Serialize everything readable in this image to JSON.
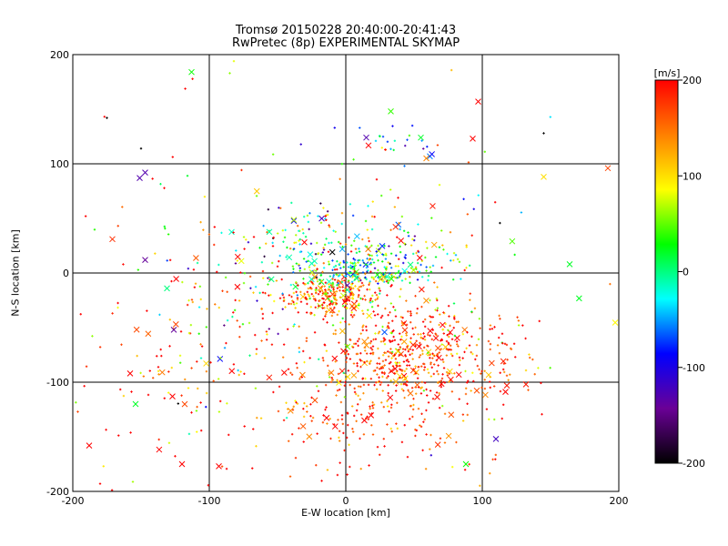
{
  "chart_data": {
    "type": "scatter",
    "title": "Tromsø 20150228 20:40:00-20:41:43",
    "subtitle": "RwPretec (8p) EXPERIMENTAL SKYMAP",
    "xlabel": "E-W location [km]",
    "ylabel": "N-S location [km]",
    "xlim": [
      -200,
      200
    ],
    "ylim": [
      -200,
      200
    ],
    "xticks": [
      "-200",
      "-100",
      "0",
      "100",
      "200"
    ],
    "yticks": [
      "-200",
      "-100",
      "0",
      "100",
      "200"
    ],
    "grid": true,
    "colorbar": {
      "label": "[m/s]",
      "range": [
        -200,
        200
      ],
      "ticks": [
        "-200",
        "-100",
        "0",
        "100",
        "200"
      ],
      "stops": [
        "#000000",
        "#6a0096",
        "#0000ff",
        "#00ffff",
        "#00ff00",
        "#ffff00",
        "#ff8000",
        "#ff0000"
      ]
    },
    "markers": {
      "large": "x",
      "small": "+"
    },
    "clusters": [
      {
        "cx": -12,
        "cy": -20,
        "sx": 18,
        "sy": 10,
        "n": 260,
        "vmean": 150,
        "vsd": 80
      },
      {
        "cx": 15,
        "cy": 2,
        "sx": 25,
        "sy": 8,
        "n": 200,
        "vmean": 0,
        "vsd": 70
      },
      {
        "cx": 40,
        "cy": -70,
        "sx": 30,
        "sy": 25,
        "n": 380,
        "vmean": 170,
        "vsd": 55
      },
      {
        "cx": 20,
        "cy": -110,
        "sx": 40,
        "sy": 35,
        "n": 280,
        "vmean": 180,
        "vsd": 40
      },
      {
        "cx": 100,
        "cy": -80,
        "sx": 25,
        "sy": 25,
        "n": 100,
        "vmean": 170,
        "vsd": 60
      },
      {
        "cx": -30,
        "cy": 30,
        "sx": 25,
        "sy": 18,
        "n": 100,
        "vmean": 0,
        "vsd": 120
      },
      {
        "cx": 40,
        "cy": 20,
        "sx": 30,
        "sy": 25,
        "n": 110,
        "vmean": 60,
        "vsd": 110
      },
      {
        "cx": -120,
        "cy": -80,
        "sx": 45,
        "sy": 60,
        "n": 120,
        "vmean": 180,
        "vsd": 60
      },
      {
        "cx": 30,
        "cy": 120,
        "sx": 30,
        "sy": 10,
        "n": 25,
        "vmean": -60,
        "vsd": 70
      },
      {
        "cx": -90,
        "cy": -30,
        "sx": 30,
        "sy": 40,
        "n": 80,
        "vmean": 60,
        "vsd": 110
      },
      {
        "cx": 0,
        "cy": 0,
        "sx": 150,
        "sy": 150,
        "n": 120,
        "vmean": 100,
        "vsd": 130
      }
    ],
    "outliers": [
      {
        "x": -175,
        "y": 142,
        "v": -200,
        "m": "small"
      },
      {
        "x": -150,
        "y": 114,
        "v": -200,
        "m": "small"
      },
      {
        "x": -151,
        "y": 87,
        "v": -130,
        "m": "large"
      },
      {
        "x": -147,
        "y": 92,
        "v": -130,
        "m": "large"
      },
      {
        "x": -113,
        "y": 184,
        "v": 30,
        "m": "large"
      },
      {
        "x": -82,
        "y": 194,
        "v": 80,
        "m": "small"
      },
      {
        "x": -85,
        "y": 183,
        "v": 60,
        "m": "small"
      },
      {
        "x": 33,
        "y": 148,
        "v": 40,
        "m": "large"
      },
      {
        "x": 93,
        "y": 123,
        "v": 200,
        "m": "large"
      },
      {
        "x": 97,
        "y": 157,
        "v": 200,
        "m": "large"
      },
      {
        "x": 145,
        "y": 128,
        "v": -200,
        "m": "small"
      },
      {
        "x": 145,
        "y": 88,
        "v": 100,
        "m": "large"
      },
      {
        "x": 192,
        "y": 96,
        "v": 170,
        "m": "large"
      },
      {
        "x": 164,
        "y": 8,
        "v": 20,
        "m": "large"
      },
      {
        "x": -147,
        "y": 12,
        "v": -140,
        "m": "large"
      },
      {
        "x": -171,
        "y": 31,
        "v": 180,
        "m": "large"
      },
      {
        "x": -126,
        "y": -52,
        "v": -140,
        "m": "large"
      },
      {
        "x": -158,
        "y": -92,
        "v": 200,
        "m": "large"
      },
      {
        "x": -154,
        "y": -120,
        "v": 20,
        "m": "large"
      },
      {
        "x": -127,
        "y": -113,
        "v": 200,
        "m": "large"
      },
      {
        "x": -188,
        "y": -158,
        "v": 200,
        "m": "large"
      },
      {
        "x": -120,
        "y": -175,
        "v": 200,
        "m": "large"
      },
      {
        "x": -180,
        "y": -193,
        "v": 200,
        "m": "small"
      },
      {
        "x": -93,
        "y": -177,
        "v": 200,
        "m": "large"
      },
      {
        "x": 15,
        "y": 124,
        "v": -130,
        "m": "large"
      },
      {
        "x": 55,
        "y": 124,
        "v": 20,
        "m": "large"
      },
      {
        "x": 59,
        "y": 105,
        "v": 140,
        "m": "large"
      },
      {
        "x": 43,
        "y": 98,
        "v": -60,
        "m": "small"
      },
      {
        "x": 88,
        "y": -175,
        "v": 30,
        "m": "large"
      },
      {
        "x": 110,
        "y": -152,
        "v": -120,
        "m": "large"
      },
      {
        "x": 132,
        "y": -102,
        "v": 190,
        "m": "large"
      },
      {
        "x": 118,
        "y": -103,
        "v": 190,
        "m": "large"
      },
      {
        "x": -116,
        "y": 89,
        "v": 20,
        "m": "small"
      }
    ]
  }
}
